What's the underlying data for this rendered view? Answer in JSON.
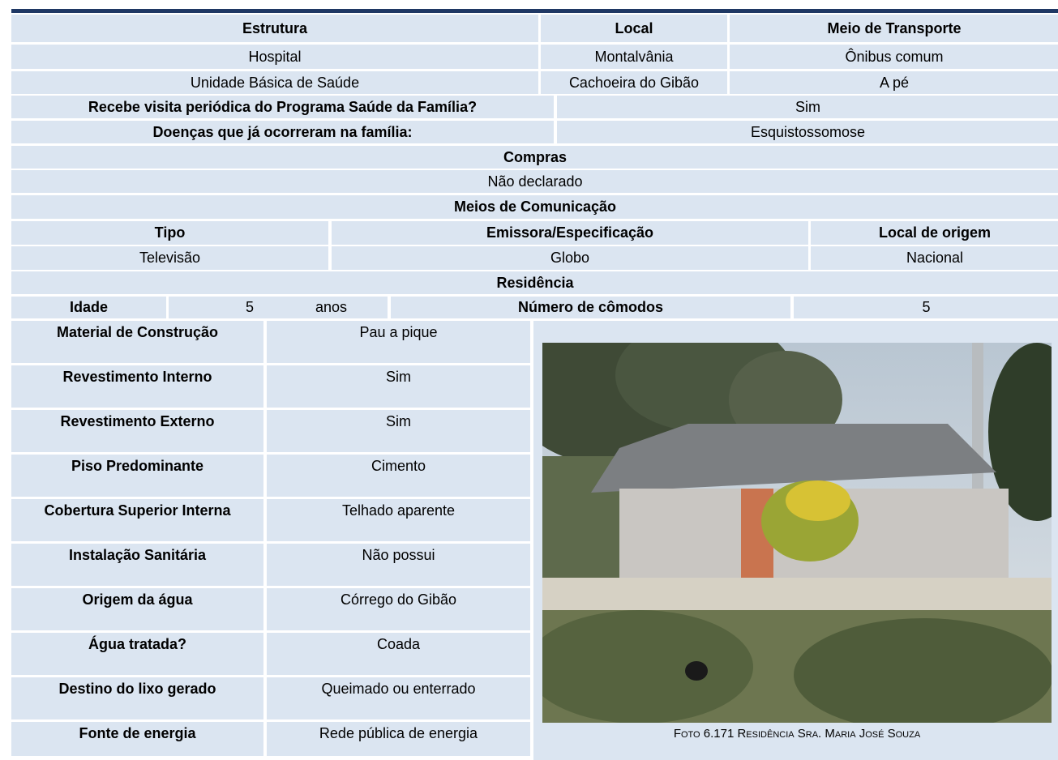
{
  "table": {
    "transport": {
      "headers": [
        "Estrutura",
        "Local",
        "Meio de Transporte"
      ],
      "rows": [
        [
          "Hospital",
          "Montalvânia",
          "Ônibus comum"
        ],
        [
          "Unidade Básica de Saúde",
          "Cachoeira do Gibão",
          "A pé"
        ]
      ]
    },
    "health": [
      [
        "Recebe visita periódica do Programa Saúde da Família?",
        "Sim"
      ],
      [
        "Doenças que já ocorreram na família:",
        "Esquistossomose"
      ]
    ],
    "purchases": {
      "title": "Compras",
      "value": "Não declarado"
    },
    "media": {
      "title": "Meios de Comunicação",
      "headers": [
        "Tipo",
        "Emissora/Especificação",
        "Local de origem"
      ],
      "rows": [
        [
          "Televisão",
          "Globo",
          "Nacional"
        ]
      ]
    },
    "residence": {
      "title": "Residência",
      "age_label": "Idade",
      "age": 5,
      "age_unit": "anos",
      "rooms_label": "Número de cômodos",
      "rooms": 5,
      "features": [
        [
          "Material de Construção",
          "Pau a pique"
        ],
        [
          "Revestimento Interno",
          "Sim"
        ],
        [
          "Revestimento Externo",
          "Sim"
        ],
        [
          "Piso Predominante",
          "Cimento"
        ],
        [
          "Cobertura Superior Interna",
          "Telhado aparente"
        ],
        [
          "Instalação Sanitária",
          "Não possui"
        ],
        [
          "Origem da água",
          "Córrego do Gibão"
        ],
        [
          "Água tratada?",
          "Coada"
        ],
        [
          "Destino do lixo gerado",
          "Queimado ou enterrado"
        ],
        [
          "Fonte de energia",
          "Rede pública de energia"
        ]
      ]
    },
    "photo": {
      "caption": "Foto 6.171 Residência Sra. Maria José Souza"
    }
  }
}
